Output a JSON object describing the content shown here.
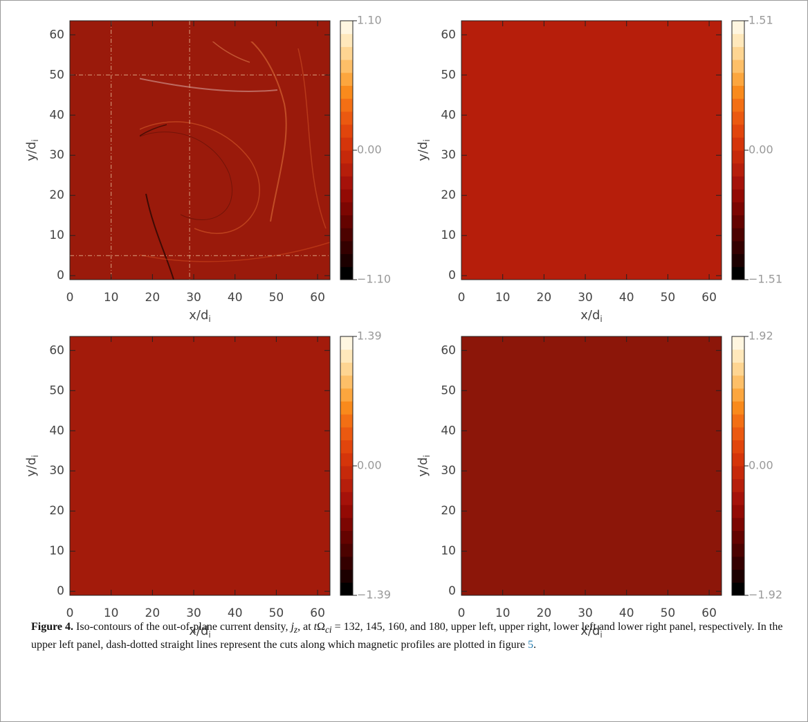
{
  "chart_data": [
    {
      "type": "heatmap",
      "color": "#9a1a0b",
      "xlabel": "x/d",
      "xlabel_sub": "i",
      "ylabel": "y/d",
      "ylabel_sub": "i",
      "xlim": [
        0,
        63
      ],
      "ylim": [
        -1,
        63.5
      ],
      "xticks": [
        0,
        10,
        20,
        30,
        40,
        50,
        60
      ],
      "yticks": [
        0,
        10,
        20,
        30,
        40,
        50,
        60
      ],
      "clim": [
        -1.1,
        1.1
      ],
      "cticks": [
        {
          "value": 1.1,
          "label": "1.10"
        },
        {
          "value": 0,
          "label": "0.00"
        },
        {
          "value": -1.1,
          "label": "−1.10"
        }
      ],
      "cuts": {
        "x": [
          10,
          29
        ],
        "y": [
          50,
          5
        ]
      }
    },
    {
      "type": "heatmap",
      "color": "#b61e0b",
      "xlabel": "x/d",
      "xlabel_sub": "i",
      "ylabel": "y/d",
      "ylabel_sub": "i",
      "xlim": [
        0,
        63
      ],
      "ylim": [
        -1,
        63.5
      ],
      "xticks": [
        0,
        10,
        20,
        30,
        40,
        50,
        60
      ],
      "yticks": [
        0,
        10,
        20,
        30,
        40,
        50,
        60
      ],
      "clim": [
        -1.51,
        1.51
      ],
      "cticks": [
        {
          "value": 1.51,
          "label": "1.51"
        },
        {
          "value": 0,
          "label": "0.00"
        },
        {
          "value": -1.51,
          "label": "−1.51"
        }
      ]
    },
    {
      "type": "heatmap",
      "color": "#a31b0b",
      "xlabel": "x/d",
      "xlabel_sub": "i",
      "ylabel": "y/d",
      "ylabel_sub": "i",
      "xlim": [
        0,
        63
      ],
      "ylim": [
        -1,
        63.5
      ],
      "xticks": [
        0,
        10,
        20,
        30,
        40,
        50,
        60
      ],
      "yticks": [
        0,
        10,
        20,
        30,
        40,
        50,
        60
      ],
      "clim": [
        -1.39,
        1.39
      ],
      "cticks": [
        {
          "value": 1.39,
          "label": "1.39"
        },
        {
          "value": 0,
          "label": "0.00"
        },
        {
          "value": -1.39,
          "label": "−1.39"
        }
      ]
    },
    {
      "type": "heatmap",
      "color": "#8c1609",
      "xlabel": "x/d",
      "xlabel_sub": "i",
      "ylabel": "y/d",
      "ylabel_sub": "i",
      "xlim": [
        0,
        63
      ],
      "ylim": [
        -1,
        63.5
      ],
      "xticks": [
        0,
        10,
        20,
        30,
        40,
        50,
        60
      ],
      "yticks": [
        0,
        10,
        20,
        30,
        40,
        50,
        60
      ],
      "clim": [
        -1.92,
        1.92
      ],
      "cticks": [
        {
          "value": 1.92,
          "label": "1.92"
        },
        {
          "value": 0,
          "label": "0.00"
        },
        {
          "value": -1.92,
          "label": "−1.92"
        }
      ]
    }
  ],
  "colormap": [
    "#000000",
    "#1c0000",
    "#340000",
    "#4c0200",
    "#640300",
    "#7c0602",
    "#930a04",
    "#a5120a",
    "#b61e0b",
    "#c6290a",
    "#d5350a",
    "#e1450c",
    "#eb5910",
    "#f36f14",
    "#f98a1c",
    "#fca63e",
    "#fdbf68",
    "#fed592",
    "#ffe8bb",
    "#fff6e0"
  ],
  "caption": {
    "label": "Figure 4.",
    "segments": [
      " Iso-contours of the out-of-plane current density, ",
      "j",
      "z",
      ", at ",
      "t",
      "Ω",
      "ci",
      " = 132, 145, 160, and 180, upper left, upper right, lower left and lower right panel, respectively. In the upper left panel, dash-dotted straight lines represent the cuts along which magnetic profiles are plotted in figure ",
      "5",
      "."
    ]
  }
}
